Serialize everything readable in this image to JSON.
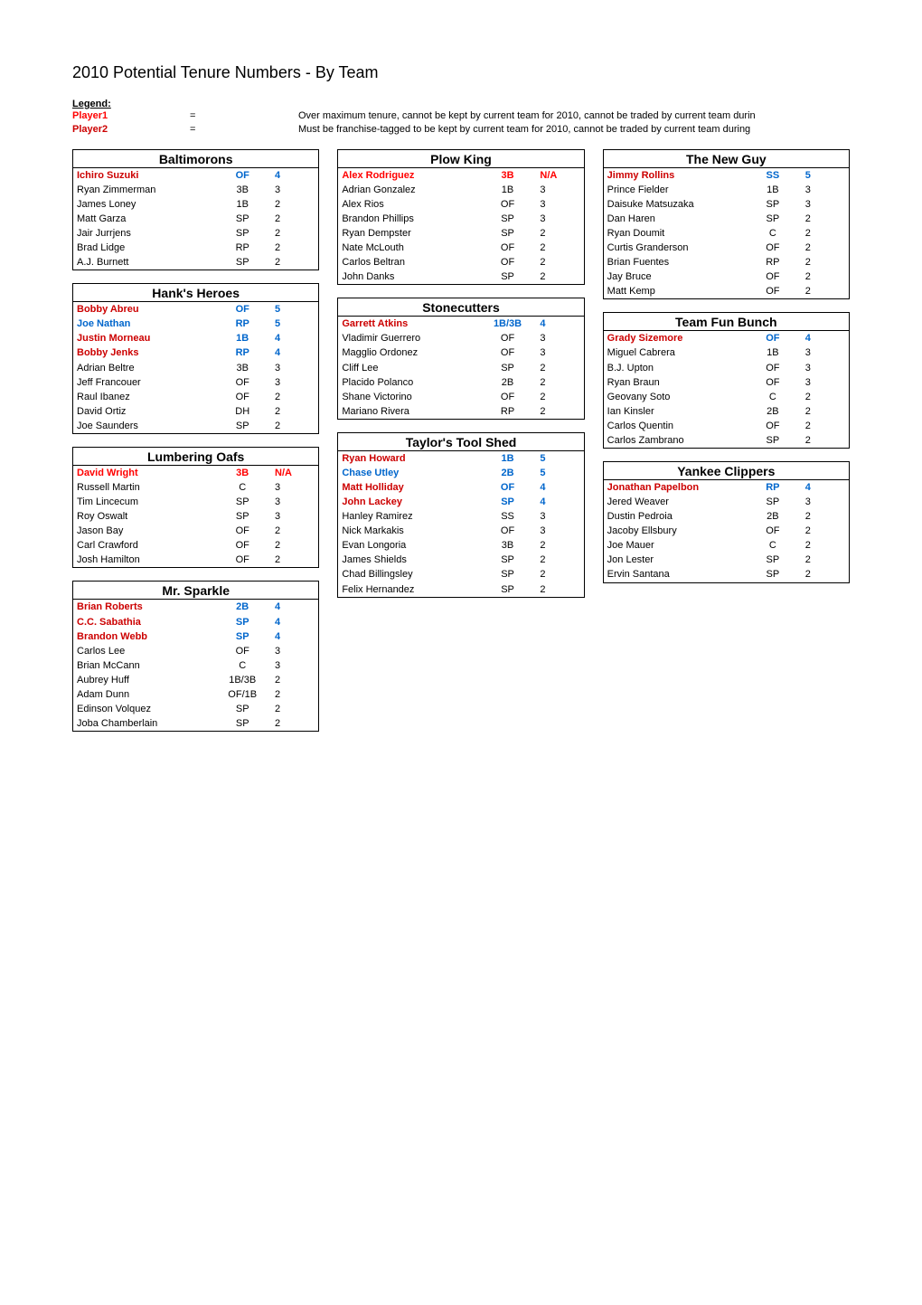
{
  "title": "2010 Potential Tenure Numbers - By Team",
  "legend": {
    "header": "Legend:",
    "rows": [
      {
        "label": "Player1",
        "labelColor": "#ff0000",
        "eq": "=",
        "text": "Over maximum tenure, cannot be kept by current team for 2010, cannot be traded by current team durin"
      },
      {
        "label": "Player2",
        "labelColor": "#cc0000",
        "eq": "=",
        "text": "Must be franchise-tagged to be kept by current team for 2010, cannot be traded by current team during"
      }
    ]
  },
  "colors": {
    "overMax": "#ff0000",
    "franchise": "#cc0000",
    "franchisePos": "#0066cc",
    "black": "#000000"
  },
  "columns": [
    [
      {
        "name": "Baltimorons",
        "players": [
          {
            "name": "Ichiro Suzuki",
            "pos": "OF",
            "num": "4",
            "style": "franchise"
          },
          {
            "name": "Ryan Zimmerman",
            "pos": "3B",
            "num": "3",
            "style": "normal"
          },
          {
            "name": "James Loney",
            "pos": "1B",
            "num": "2",
            "style": "normal"
          },
          {
            "name": "Matt Garza",
            "pos": "SP",
            "num": "2",
            "style": "normal"
          },
          {
            "name": "Jair Jurrjens",
            "pos": "SP",
            "num": "2",
            "style": "normal"
          },
          {
            "name": "Brad Lidge",
            "pos": "RP",
            "num": "2",
            "style": "normal"
          },
          {
            "name": "A.J. Burnett",
            "pos": "SP",
            "num": "2",
            "style": "normal"
          }
        ]
      },
      {
        "name": "Hank's Heroes",
        "players": [
          {
            "name": "Bobby Abreu",
            "pos": "OF",
            "num": "5",
            "style": "franchise"
          },
          {
            "name": "Joe Nathan",
            "pos": "RP",
            "num": "5",
            "style": "blueRow"
          },
          {
            "name": "Justin Morneau",
            "pos": "1B",
            "num": "4",
            "style": "franchise"
          },
          {
            "name": "Bobby Jenks",
            "pos": "RP",
            "num": "4",
            "style": "franchise"
          },
          {
            "name": "Adrian Beltre",
            "pos": "3B",
            "num": "3",
            "style": "normal"
          },
          {
            "name": "Jeff Francouer",
            "pos": "OF",
            "num": "3",
            "style": "normal"
          },
          {
            "name": "Raul Ibanez",
            "pos": "OF",
            "num": "2",
            "style": "normal"
          },
          {
            "name": "David Ortiz",
            "pos": "DH",
            "num": "2",
            "style": "normal"
          },
          {
            "name": "Joe Saunders",
            "pos": "SP",
            "num": "2",
            "style": "normal"
          }
        ]
      },
      {
        "name": "Lumbering Oafs",
        "players": [
          {
            "name": "David Wright",
            "pos": "3B",
            "num": "N/A",
            "style": "over"
          },
          {
            "name": "Russell Martin",
            "pos": "C",
            "num": "3",
            "style": "normal"
          },
          {
            "name": "Tim Lincecum",
            "pos": "SP",
            "num": "3",
            "style": "normal"
          },
          {
            "name": "Roy Oswalt",
            "pos": "SP",
            "num": "3",
            "style": "normal"
          },
          {
            "name": "Jason Bay",
            "pos": "OF",
            "num": "2",
            "style": "normal"
          },
          {
            "name": "Carl Crawford",
            "pos": "OF",
            "num": "2",
            "style": "normal"
          },
          {
            "name": "Josh Hamilton",
            "pos": "OF",
            "num": "2",
            "style": "normal"
          }
        ]
      },
      {
        "name": "Mr. Sparkle",
        "players": [
          {
            "name": "Brian Roberts",
            "pos": "2B",
            "num": "4",
            "style": "franchise"
          },
          {
            "name": "C.C. Sabathia",
            "pos": "SP",
            "num": "4",
            "style": "franchise"
          },
          {
            "name": "Brandon Webb",
            "pos": "SP",
            "num": "4",
            "style": "franchise"
          },
          {
            "name": "Carlos Lee",
            "pos": "OF",
            "num": "3",
            "style": "normal"
          },
          {
            "name": "Brian McCann",
            "pos": "C",
            "num": "3",
            "style": "normal"
          },
          {
            "name": "Aubrey Huff",
            "pos": "1B/3B",
            "num": "2",
            "style": "normal"
          },
          {
            "name": "Adam Dunn",
            "pos": "OF/1B",
            "num": "2",
            "style": "normal"
          },
          {
            "name": "Edinson Volquez",
            "pos": "SP",
            "num": "2",
            "style": "normal"
          },
          {
            "name": "Joba Chamberlain",
            "pos": "SP",
            "num": "2",
            "style": "normal"
          }
        ]
      }
    ],
    [
      {
        "name": "Plow King",
        "players": [
          {
            "name": "Alex Rodriguez",
            "pos": "3B",
            "num": "N/A",
            "style": "over"
          },
          {
            "name": "Adrian Gonzalez",
            "pos": "1B",
            "num": "3",
            "style": "normal"
          },
          {
            "name": "Alex Rios",
            "pos": "OF",
            "num": "3",
            "style": "normal"
          },
          {
            "name": "Brandon Phillips",
            "pos": "SP",
            "num": "3",
            "style": "normal"
          },
          {
            "name": "Ryan Dempster",
            "pos": "SP",
            "num": "2",
            "style": "normal"
          },
          {
            "name": "Nate McLouth",
            "pos": "OF",
            "num": "2",
            "style": "normal"
          },
          {
            "name": "Carlos Beltran",
            "pos": "OF",
            "num": "2",
            "style": "normal"
          },
          {
            "name": "John Danks",
            "pos": "SP",
            "num": "2",
            "style": "normal"
          }
        ]
      },
      {
        "name": "Stonecutters",
        "players": [
          {
            "name": "Garrett Atkins",
            "pos": "1B/3B",
            "num": "4",
            "style": "franchise"
          },
          {
            "name": "Vladimir Guerrero",
            "pos": "OF",
            "num": "3",
            "style": "normal"
          },
          {
            "name": "Magglio Ordonez",
            "pos": "OF",
            "num": "3",
            "style": "normal"
          },
          {
            "name": "Cliff Lee",
            "pos": "SP",
            "num": "2",
            "style": "normal"
          },
          {
            "name": "Placido Polanco",
            "pos": "2B",
            "num": "2",
            "style": "normal"
          },
          {
            "name": "Shane Victorino",
            "pos": "OF",
            "num": "2",
            "style": "normal"
          },
          {
            "name": "Mariano Rivera",
            "pos": "RP",
            "num": "2",
            "style": "normal"
          }
        ]
      },
      {
        "name": "Taylor's Tool Shed",
        "players": [
          {
            "name": "Ryan Howard",
            "pos": "1B",
            "num": "5",
            "style": "franchise"
          },
          {
            "name": "Chase Utley",
            "pos": "2B",
            "num": "5",
            "style": "blueRow"
          },
          {
            "name": "Matt Holliday",
            "pos": "OF",
            "num": "4",
            "style": "franchise"
          },
          {
            "name": "John Lackey",
            "pos": "SP",
            "num": "4",
            "style": "franchise"
          },
          {
            "name": "Hanley Ramirez",
            "pos": "SS",
            "num": "3",
            "style": "normal"
          },
          {
            "name": "Nick Markakis",
            "pos": "OF",
            "num": "3",
            "style": "normal"
          },
          {
            "name": "Evan Longoria",
            "pos": "3B",
            "num": "2",
            "style": "normal"
          },
          {
            "name": "James Shields",
            "pos": "SP",
            "num": "2",
            "style": "normal"
          },
          {
            "name": "Chad Billingsley",
            "pos": "SP",
            "num": "2",
            "style": "normal"
          },
          {
            "name": "Felix Hernandez",
            "pos": "SP",
            "num": "2",
            "style": "normal"
          }
        ]
      }
    ],
    [
      {
        "name": "The New Guy",
        "players": [
          {
            "name": "Jimmy Rollins",
            "pos": "SS",
            "num": "5",
            "style": "franchise"
          },
          {
            "name": "Prince Fielder",
            "pos": "1B",
            "num": "3",
            "style": "normal"
          },
          {
            "name": "Daisuke Matsuzaka",
            "pos": "SP",
            "num": "3",
            "style": "normal"
          },
          {
            "name": "Dan Haren",
            "pos": "SP",
            "num": "2",
            "style": "normal"
          },
          {
            "name": "Ryan Doumit",
            "pos": "C",
            "num": "2",
            "style": "normal"
          },
          {
            "name": "Curtis Granderson",
            "pos": "OF",
            "num": "2",
            "style": "normal"
          },
          {
            "name": "Brian Fuentes",
            "pos": "RP",
            "num": "2",
            "style": "normal"
          },
          {
            "name": "Jay Bruce",
            "pos": "OF",
            "num": "2",
            "style": "normal"
          },
          {
            "name": "Matt Kemp",
            "pos": "OF",
            "num": "2",
            "style": "normal"
          }
        ]
      },
      {
        "name": "Team Fun Bunch",
        "players": [
          {
            "name": "Grady Sizemore",
            "pos": "OF",
            "num": "4",
            "style": "franchise"
          },
          {
            "name": "Miguel Cabrera",
            "pos": "1B",
            "num": "3",
            "style": "normal"
          },
          {
            "name": "B.J. Upton",
            "pos": "OF",
            "num": "3",
            "style": "normal"
          },
          {
            "name": "Ryan Braun",
            "pos": "OF",
            "num": "3",
            "style": "normal"
          },
          {
            "name": "Geovany Soto",
            "pos": "C",
            "num": "2",
            "style": "normal"
          },
          {
            "name": "Ian Kinsler",
            "pos": "2B",
            "num": "2",
            "style": "normal"
          },
          {
            "name": "Carlos Quentin",
            "pos": "OF",
            "num": "2",
            "style": "normal"
          },
          {
            "name": "Carlos Zambrano",
            "pos": "SP",
            "num": "2",
            "style": "normal"
          }
        ]
      },
      {
        "name": "Yankee Clippers",
        "players": [
          {
            "name": "Jonathan Papelbon",
            "pos": "RP",
            "num": "4",
            "style": "franchise"
          },
          {
            "name": "Jered Weaver",
            "pos": "SP",
            "num": "3",
            "style": "normal"
          },
          {
            "name": "Dustin Pedroia",
            "pos": "2B",
            "num": "2",
            "style": "normal"
          },
          {
            "name": "Jacoby Ellsbury",
            "pos": "OF",
            "num": "2",
            "style": "normal"
          },
          {
            "name": "Joe Mauer",
            "pos": "C",
            "num": "2",
            "style": "normal"
          },
          {
            "name": "Jon Lester",
            "pos": "SP",
            "num": "2",
            "style": "normal"
          },
          {
            "name": "Ervin Santana",
            "pos": "SP",
            "num": "2",
            "style": "normal"
          }
        ]
      }
    ]
  ]
}
